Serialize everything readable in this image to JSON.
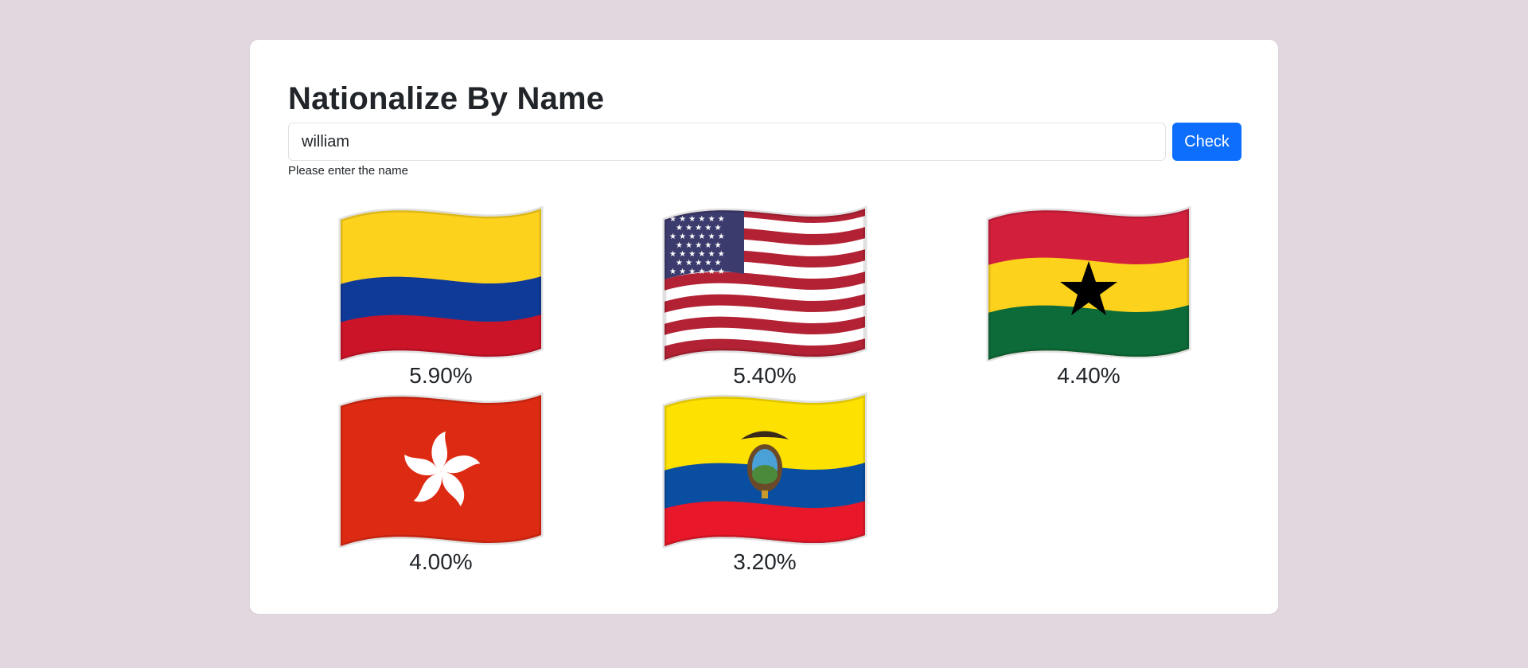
{
  "app": {
    "title": "Nationalize By Name"
  },
  "search": {
    "value": "william",
    "placeholder": "",
    "button_label": "Check",
    "hint": "Please enter the name"
  },
  "results": [
    {
      "country": "colombia-flag-icon",
      "probability": "5.90%"
    },
    {
      "country": "united-states-flag-icon",
      "probability": "5.40%"
    },
    {
      "country": "ghana-flag-icon",
      "probability": "4.40%"
    },
    {
      "country": "hong-kong-flag-icon",
      "probability": "4.00%"
    },
    {
      "country": "ecuador-flag-icon",
      "probability": "3.20%"
    }
  ],
  "colors": {
    "background": "#e2d6df",
    "accent": "#0d6efd"
  }
}
